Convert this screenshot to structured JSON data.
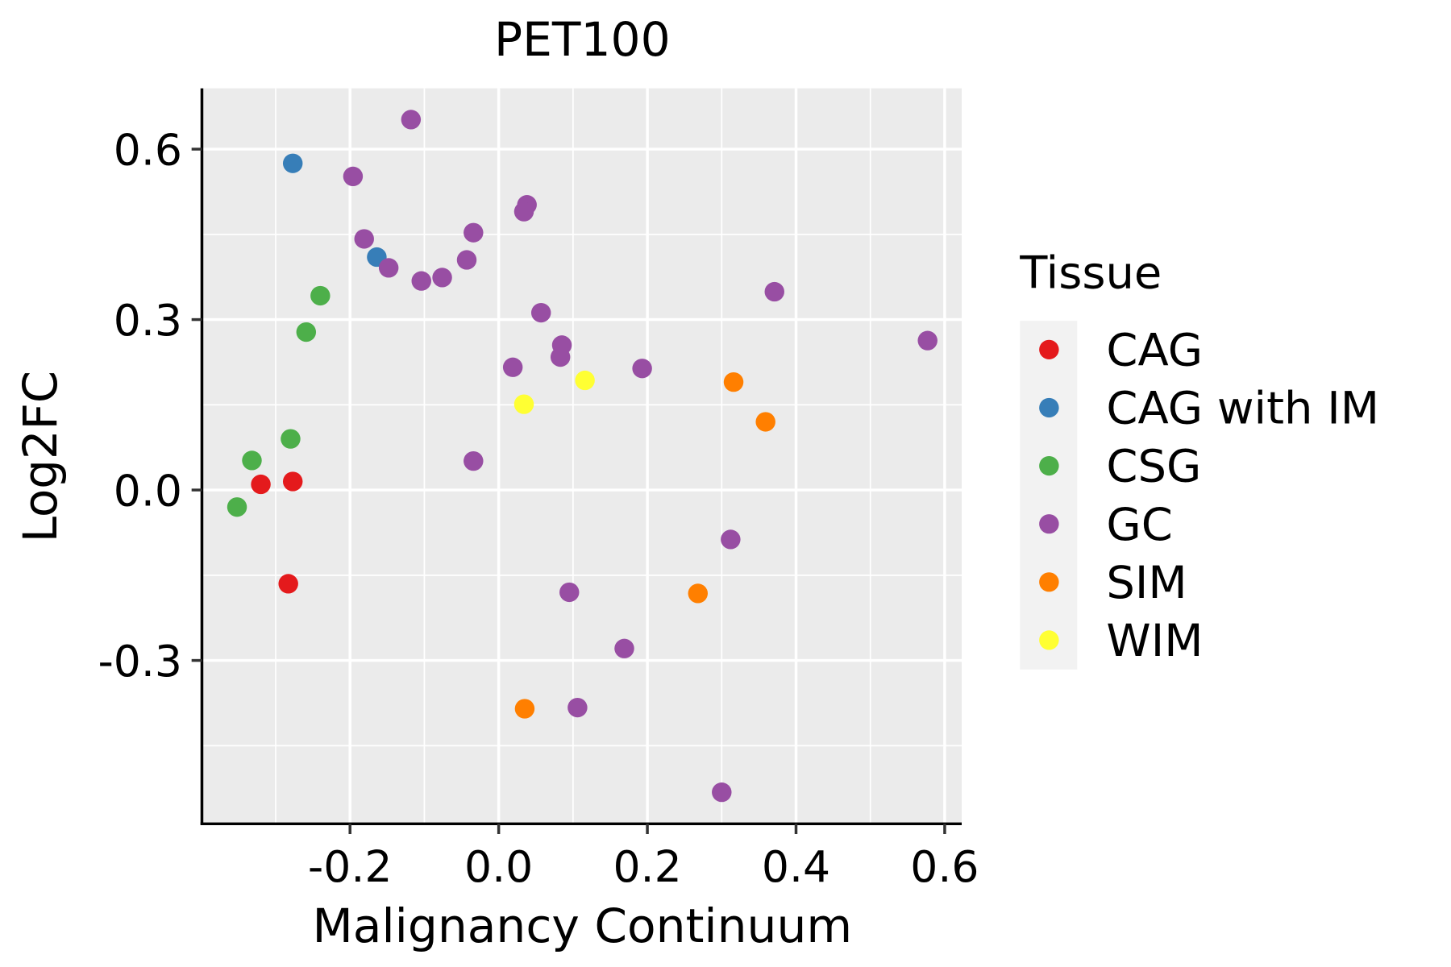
{
  "chart_data": {
    "type": "scatter",
    "title": "PET100",
    "xlabel": "Malignancy Continuum",
    "ylabel": "Log2FC",
    "xlim": [
      -0.4,
      0.62
    ],
    "ylim": [
      -0.58,
      0.71
    ],
    "x_ticks": [
      -0.2,
      0.0,
      0.2,
      0.4,
      0.6
    ],
    "x_tick_labels": [
      "-0.2",
      "0.0",
      "0.2",
      "0.4",
      "0.6"
    ],
    "y_ticks": [
      -0.3,
      0.0,
      0.3,
      0.6
    ],
    "y_tick_labels": [
      "-0.3",
      "0.0",
      "0.3",
      "0.6"
    ],
    "grid": true,
    "legend": {
      "title": "Tissue",
      "placement": "right"
    },
    "series": [
      {
        "name": "CAG",
        "color": "#E41A1C",
        "points": [
          [
            -0.32,
            0.01
          ],
          [
            -0.277,
            0.015
          ],
          [
            -0.283,
            -0.165
          ]
        ]
      },
      {
        "name": "CAG with IM",
        "color": "#377EB8",
        "points": [
          [
            -0.277,
            0.575
          ],
          [
            -0.164,
            0.41
          ]
        ]
      },
      {
        "name": "CSG",
        "color": "#4DAF4A",
        "points": [
          [
            -0.24,
            0.342
          ],
          [
            -0.259,
            0.278
          ],
          [
            -0.28,
            0.09
          ],
          [
            -0.332,
            0.052
          ],
          [
            -0.352,
            -0.03
          ]
        ]
      },
      {
        "name": "GC",
        "color": "#984EA3",
        "points": [
          [
            -0.118,
            0.652
          ],
          [
            -0.196,
            0.552
          ],
          [
            -0.181,
            0.442
          ],
          [
            -0.148,
            0.391
          ],
          [
            -0.104,
            0.368
          ],
          [
            -0.076,
            0.374
          ],
          [
            -0.043,
            0.405
          ],
          [
            -0.034,
            0.453
          ],
          [
            0.038,
            0.502
          ],
          [
            0.034,
            0.49
          ],
          [
            0.057,
            0.312
          ],
          [
            0.085,
            0.255
          ],
          [
            0.083,
            0.234
          ],
          [
            0.019,
            0.216
          ],
          [
            0.193,
            0.214
          ],
          [
            0.371,
            0.349
          ],
          [
            0.577,
            0.263
          ],
          [
            -0.034,
            0.051
          ],
          [
            0.312,
            -0.087
          ],
          [
            0.095,
            -0.18
          ],
          [
            0.169,
            -0.279
          ],
          [
            0.106,
            -0.383
          ],
          [
            0.3,
            -0.532
          ]
        ]
      },
      {
        "name": "SIM",
        "color": "#FF7F00",
        "points": [
          [
            0.316,
            0.19
          ],
          [
            0.359,
            0.12
          ],
          [
            0.268,
            -0.182
          ],
          [
            0.035,
            -0.385
          ]
        ]
      },
      {
        "name": "WIM",
        "color": "#FFFF33",
        "points": [
          [
            0.116,
            0.193
          ],
          [
            0.034,
            0.151
          ]
        ]
      }
    ]
  },
  "colors": {
    "panel_background": "#EBEBEB",
    "grid": "#FFFFFF",
    "axis_line": "#000000",
    "legend_key_background": "#F2F2F2"
  }
}
